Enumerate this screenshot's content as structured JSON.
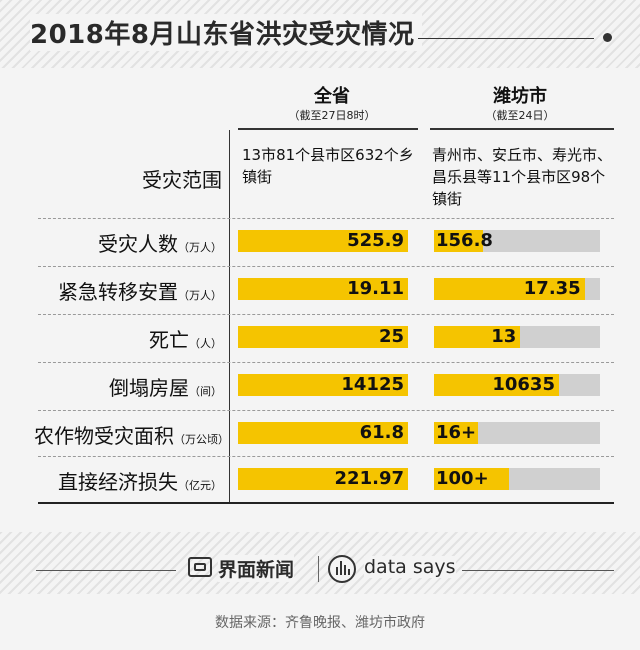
{
  "title": "2018年8月山东省洪灾受灾情况",
  "columns": {
    "province": {
      "name": "全省",
      "note": "（截至27日8时）"
    },
    "weifang": {
      "name": "潍坊市",
      "note": "（截至24日）"
    }
  },
  "scope_row": {
    "label": "受灾范围",
    "province_text": "13市81个县市区632个乡镇街",
    "weifang_text": "青州市、安丘市、寿光市、昌乐县等11个县市区98个镇街"
  },
  "chart_data": {
    "type": "bar",
    "categories": [
      "受灾人数",
      "紧急转移安置",
      "死亡",
      "倒塌房屋",
      "农作物受灾面积",
      "直接经济损失"
    ],
    "units": [
      "（万人）",
      "（万人）",
      "（人）",
      "（间）",
      "（万公顷）",
      "（亿元）"
    ],
    "series": [
      {
        "name": "全省",
        "values": [
          525.9,
          19.11,
          25,
          14125,
          61.8,
          221.97
        ],
        "labels": [
          "525.9",
          "19.11",
          "25",
          "14125",
          "61.8",
          "221.97"
        ]
      },
      {
        "name": "潍坊市",
        "values": [
          156.8,
          17.35,
          13,
          10635,
          16,
          100
        ],
        "labels": [
          "156.8",
          "17.35",
          "13",
          "10635",
          "16+",
          "100+"
        ]
      }
    ]
  },
  "colors": {
    "bar": "#f5c400",
    "track": "#d0d0d0",
    "text": "#111111"
  },
  "footer": {
    "brand_jiemian": "界面新闻",
    "brand_datasays": "data says",
    "source": "数据来源：齐鲁晚报、潍坊市政府"
  }
}
